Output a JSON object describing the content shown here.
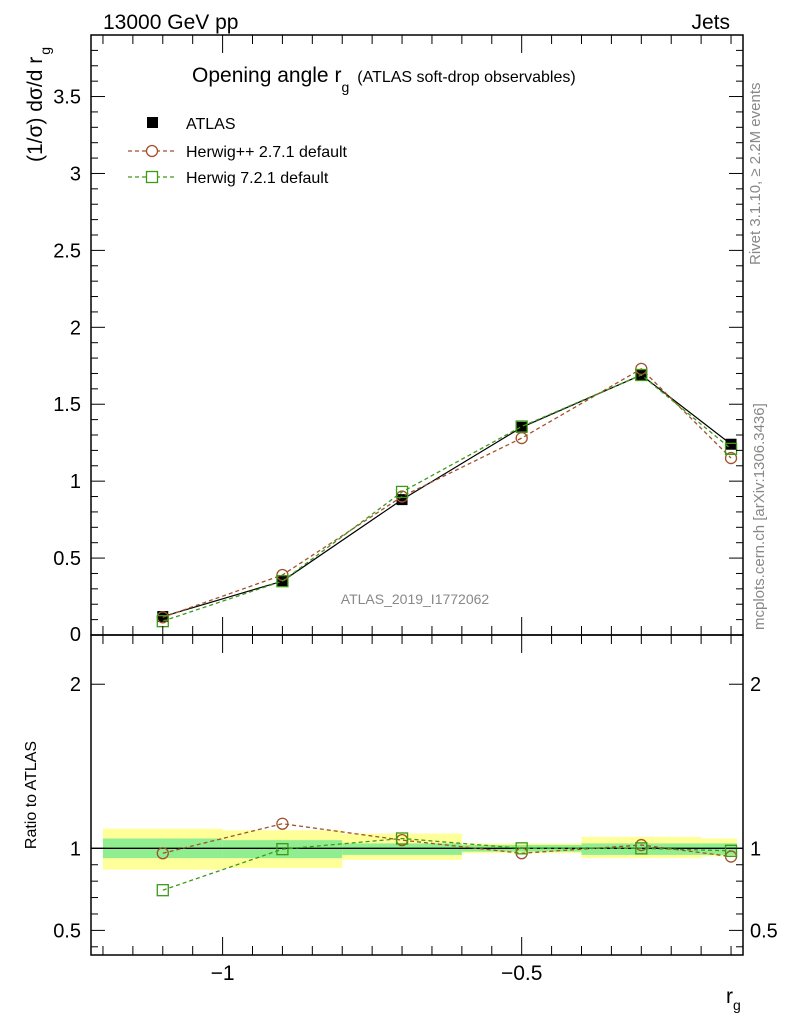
{
  "header": {
    "left": "13000 GeV pp",
    "right": "Jets"
  },
  "side_labels": {
    "rivet": "Rivet 3.1.10, ≥ 2.2M events",
    "mcplots": "mcplots.cern.ch [arXiv:1306.3436]"
  },
  "analysis_id": "ATLAS_2019_I1772062",
  "colors": {
    "atlas": "#000000",
    "herwigpp": "#a0522d",
    "herwig7": "#3c9a18",
    "band_inner": "#90ee90",
    "band_outer": "#ffff99"
  },
  "chart_data": [
    {
      "type": "line",
      "title_main": "Opening angle r",
      "title_sub": "g",
      "title_extra": "(ATLAS soft-drop observables)",
      "ylabel_main": "(1/σ) dσ/d r",
      "ylabel_sub": "g",
      "xlim": [
        -1.22,
        -0.13
      ],
      "ylim": [
        0,
        3.9
      ],
      "y_ticks": [
        0.5,
        1,
        1.5,
        2,
        2.5,
        3,
        3.5
      ],
      "y_tick_labels": [
        "0.5",
        "1",
        "1.5",
        "2",
        "2.5",
        "3",
        "3.5"
      ],
      "y_zero_label": "0",
      "legend_position": "top-left",
      "x": [
        -1.1,
        -0.9,
        -0.7,
        -0.5,
        -0.3,
        -0.15
      ],
      "series": [
        {
          "name": "ATLAS",
          "marker": "filled-square",
          "values": [
            0.12,
            0.35,
            0.88,
            1.35,
            1.69,
            1.24
          ]
        },
        {
          "name": "Herwig++ 2.7.1 default",
          "marker": "open-circle",
          "values": [
            0.115,
            0.39,
            0.9,
            1.28,
            1.73,
            1.15
          ]
        },
        {
          "name": "Herwig 7.2.1 default",
          "marker": "open-square",
          "values": [
            0.09,
            0.35,
            0.93,
            1.355,
            1.69,
            1.21
          ]
        }
      ]
    },
    {
      "type": "line",
      "ylabel": "Ratio to ATLAS",
      "xlabel_main": "r",
      "xlabel_sub": "g",
      "xlim": [
        -1.22,
        -0.13
      ],
      "ylim": [
        0.35,
        2.3
      ],
      "y_ticks": [
        0.5,
        1,
        2
      ],
      "y_tick_labels": [
        "0.5",
        "1",
        "2"
      ],
      "x_ticks": [
        -1,
        -0.5
      ],
      "x_tick_labels": [
        "−1",
        "−0.5"
      ],
      "bands": [
        {
          "x": [
            -1.2,
            -1.0
          ],
          "inner": [
            0.94,
            1.06
          ],
          "outer": [
            0.87,
            1.12
          ]
        },
        {
          "x": [
            -1.0,
            -0.8
          ],
          "inner": [
            0.94,
            1.05
          ],
          "outer": [
            0.88,
            1.11
          ]
        },
        {
          "x": [
            -0.8,
            -0.6
          ],
          "inner": [
            0.96,
            1.03
          ],
          "outer": [
            0.93,
            1.09
          ]
        },
        {
          "x": [
            -0.6,
            -0.4
          ],
          "inner": [
            0.98,
            1.02
          ],
          "outer": [
            0.97,
            1.03
          ]
        },
        {
          "x": [
            -0.4,
            -0.2
          ],
          "inner": [
            0.96,
            1.03
          ],
          "outer": [
            0.94,
            1.07
          ]
        },
        {
          "x": [
            -0.2,
            -0.14
          ],
          "inner": [
            0.96,
            1.03
          ],
          "outer": [
            0.95,
            1.06
          ]
        }
      ],
      "series": [
        {
          "name": "Herwig++ 2.7.1 default",
          "marker": "open-circle",
          "values": [
            0.97,
            1.15,
            1.05,
            0.97,
            1.02,
            0.95
          ]
        },
        {
          "name": "Herwig 7.2.1 default",
          "marker": "open-square",
          "values": [
            0.745,
            0.995,
            1.06,
            1.0,
            1.0,
            0.985
          ]
        }
      ]
    }
  ]
}
